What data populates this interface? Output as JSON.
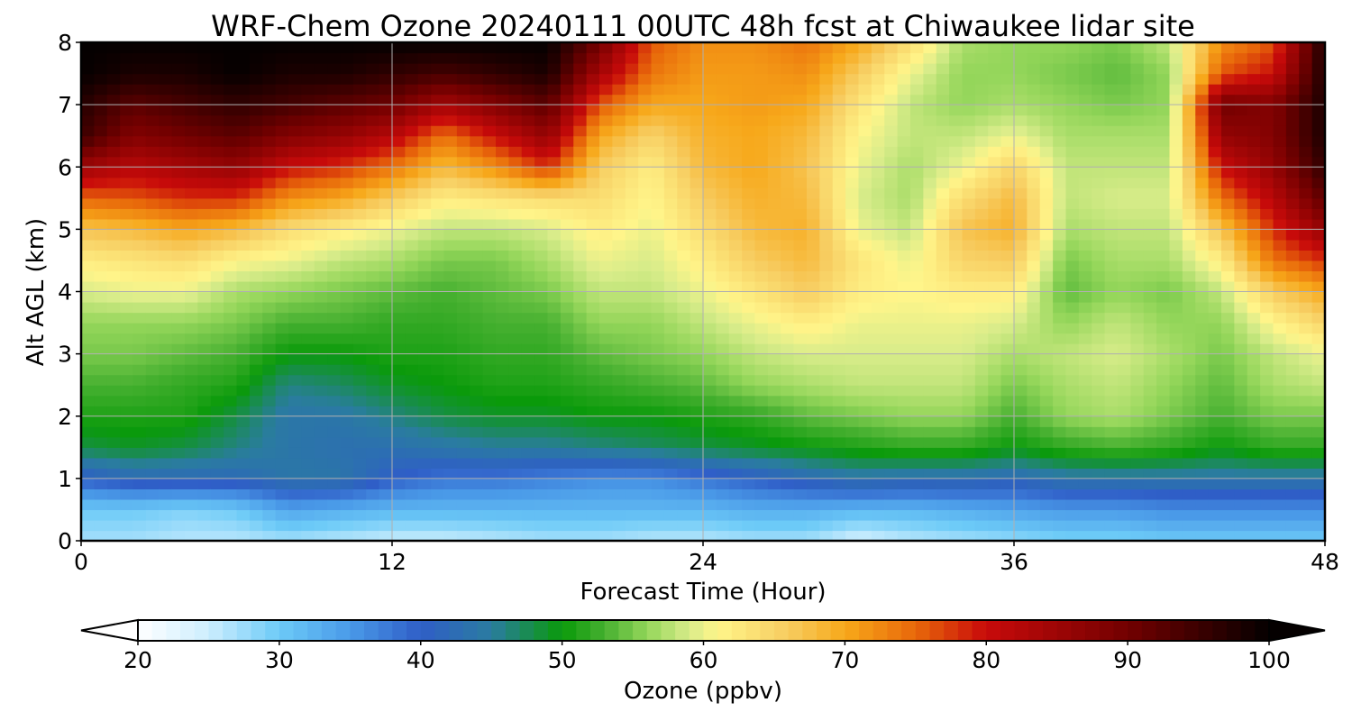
{
  "chart_data": {
    "type": "heatmap",
    "title": "WRF-Chem Ozone  20240111 00UTC 48h fcst at Chiwaukee lidar site",
    "xlabel": "Forecast Time (Hour)",
    "ylabel": "Alt AGL (km)",
    "xlim": [
      0,
      48
    ],
    "ylim": [
      0,
      8
    ],
    "x_ticks": [
      "0",
      "12",
      "24",
      "36",
      "48"
    ],
    "y_ticks": [
      "0",
      "1",
      "2",
      "3",
      "4",
      "5",
      "6",
      "7",
      "8"
    ],
    "grid": true,
    "colorbar": {
      "label": "Ozone  (ppbv)",
      "range": [
        20,
        100
      ],
      "ticks": [
        "20",
        "30",
        "40",
        "50",
        "60",
        "70",
        "80",
        "90",
        "100"
      ],
      "colors": [
        {
          "v": 20,
          "c": "#ffffff"
        },
        {
          "v": 25,
          "c": "#cdeefe"
        },
        {
          "v": 30,
          "c": "#6ccaf7"
        },
        {
          "v": 35,
          "c": "#4a9ae8"
        },
        {
          "v": 40,
          "c": "#2f5ec7"
        },
        {
          "v": 45,
          "c": "#2a7ca0"
        },
        {
          "v": 50,
          "c": "#0a9a0a"
        },
        {
          "v": 53,
          "c": "#46b030"
        },
        {
          "v": 56,
          "c": "#94d65a"
        },
        {
          "v": 59,
          "c": "#d8ec8a"
        },
        {
          "v": 61,
          "c": "#fff58a"
        },
        {
          "v": 66,
          "c": "#f7cc60"
        },
        {
          "v": 70,
          "c": "#f7a81a"
        },
        {
          "v": 75,
          "c": "#e8680a"
        },
        {
          "v": 80,
          "c": "#c80a0a"
        },
        {
          "v": 90,
          "c": "#720000"
        },
        {
          "v": 100,
          "c": "#050000"
        }
      ]
    },
    "x": [
      0,
      2,
      4,
      6,
      8,
      10,
      12,
      14,
      16,
      18,
      20,
      22,
      24,
      26,
      28,
      30,
      32,
      34,
      36,
      38,
      40,
      42,
      44,
      46,
      48
    ],
    "y": [
      0,
      0.5,
      1,
      1.5,
      2,
      2.5,
      3,
      3.5,
      4,
      4.5,
      5,
      5.5,
      6,
      6.5,
      7,
      7.5,
      8
    ],
    "z": [
      [
        27,
        30,
        40,
        48,
        51,
        53,
        55,
        56,
        59,
        62,
        67,
        75,
        85,
        95,
        97,
        100,
        100
      ],
      [
        27,
        30,
        42,
        49,
        51,
        53,
        55,
        56,
        60,
        63,
        68,
        76,
        82,
        88,
        92,
        98,
        100
      ],
      [
        26,
        29,
        42,
        48,
        51,
        52,
        54,
        56,
        60,
        64,
        70,
        78,
        84,
        90,
        94,
        98,
        100
      ],
      [
        26,
        30,
        42,
        46,
        48,
        51,
        53,
        55,
        57,
        61,
        68,
        78,
        86,
        92,
        96,
        100,
        100
      ],
      [
        27,
        34,
        44,
        44,
        44,
        46,
        50,
        53,
        56,
        60,
        64,
        72,
        80,
        88,
        94,
        98,
        100
      ],
      [
        26,
        33,
        44,
        43,
        44,
        47,
        50,
        53,
        55,
        58,
        62,
        70,
        78,
        86,
        92,
        98,
        100
      ],
      [
        25,
        32,
        40,
        43,
        46,
        49,
        51,
        52,
        54,
        57,
        60,
        66,
        74,
        82,
        90,
        96,
        100
      ],
      [
        25,
        32,
        38,
        44,
        48,
        50,
        51,
        52,
        53,
        55,
        58,
        62,
        68,
        74,
        84,
        94,
        100
      ],
      [
        26,
        32,
        38,
        45,
        49,
        51,
        52,
        53,
        54,
        55,
        58,
        63,
        72,
        80,
        88,
        96,
        100
      ],
      [
        27,
        32,
        37,
        45,
        49,
        51,
        52,
        53,
        55,
        57,
        59,
        64,
        78,
        86,
        92,
        98,
        100
      ],
      [
        27,
        32,
        36,
        46,
        50,
        52,
        54,
        56,
        58,
        60,
        62,
        64,
        66,
        70,
        76,
        84,
        90
      ],
      [
        26,
        32,
        36,
        47,
        50,
        53,
        55,
        56,
        58,
        59,
        60,
        61,
        62,
        65,
        70,
        74,
        76
      ],
      [
        26,
        32,
        38,
        48,
        51,
        54,
        56,
        58,
        60,
        62,
        64,
        66,
        68,
        69,
        70,
        71,
        72
      ],
      [
        27,
        33,
        40,
        49,
        52,
        56,
        58,
        60,
        63,
        66,
        68,
        69,
        70,
        70,
        71,
        71,
        72
      ],
      [
        27,
        33,
        42,
        50,
        54,
        57,
        59,
        62,
        66,
        68,
        69,
        68,
        67,
        68,
        70,
        72,
        74
      ],
      [
        24,
        32,
        44,
        51,
        55,
        58,
        59,
        60,
        62,
        63,
        60,
        59,
        60,
        61,
        63,
        66,
        70
      ],
      [
        26,
        32,
        43,
        52,
        56,
        58,
        59,
        60,
        61,
        60,
        58,
        57,
        57,
        58,
        58,
        60,
        64
      ],
      [
        27,
        33,
        43,
        52,
        56,
        58,
        59,
        60,
        62,
        65,
        67,
        64,
        60,
        58,
        56,
        56,
        57
      ],
      [
        28,
        34,
        42,
        50,
        53,
        55,
        57,
        59,
        62,
        66,
        69,
        68,
        65,
        60,
        57,
        56,
        56
      ],
      [
        29,
        35,
        44,
        52,
        56,
        57,
        58,
        56,
        54,
        55,
        57,
        58,
        58,
        57,
        56,
        55,
        56
      ],
      [
        29,
        35,
        44,
        53,
        57,
        58,
        59,
        58,
        56,
        57,
        58,
        59,
        58,
        57,
        55,
        54,
        55
      ],
      [
        30,
        36,
        44,
        52,
        55,
        56,
        57,
        56,
        55,
        57,
        58,
        59,
        58,
        57,
        56,
        56,
        58
      ],
      [
        30,
        36,
        44,
        50,
        53,
        54,
        55,
        56,
        58,
        62,
        67,
        74,
        80,
        86,
        90,
        76,
        72
      ],
      [
        30,
        36,
        44,
        52,
        55,
        57,
        58,
        61,
        66,
        74,
        78,
        82,
        86,
        88,
        88,
        80,
        76
      ],
      [
        30,
        36,
        44,
        52,
        55,
        58,
        60,
        65,
        70,
        78,
        86,
        92,
        96,
        98,
        98,
        98,
        98
      ]
    ]
  }
}
